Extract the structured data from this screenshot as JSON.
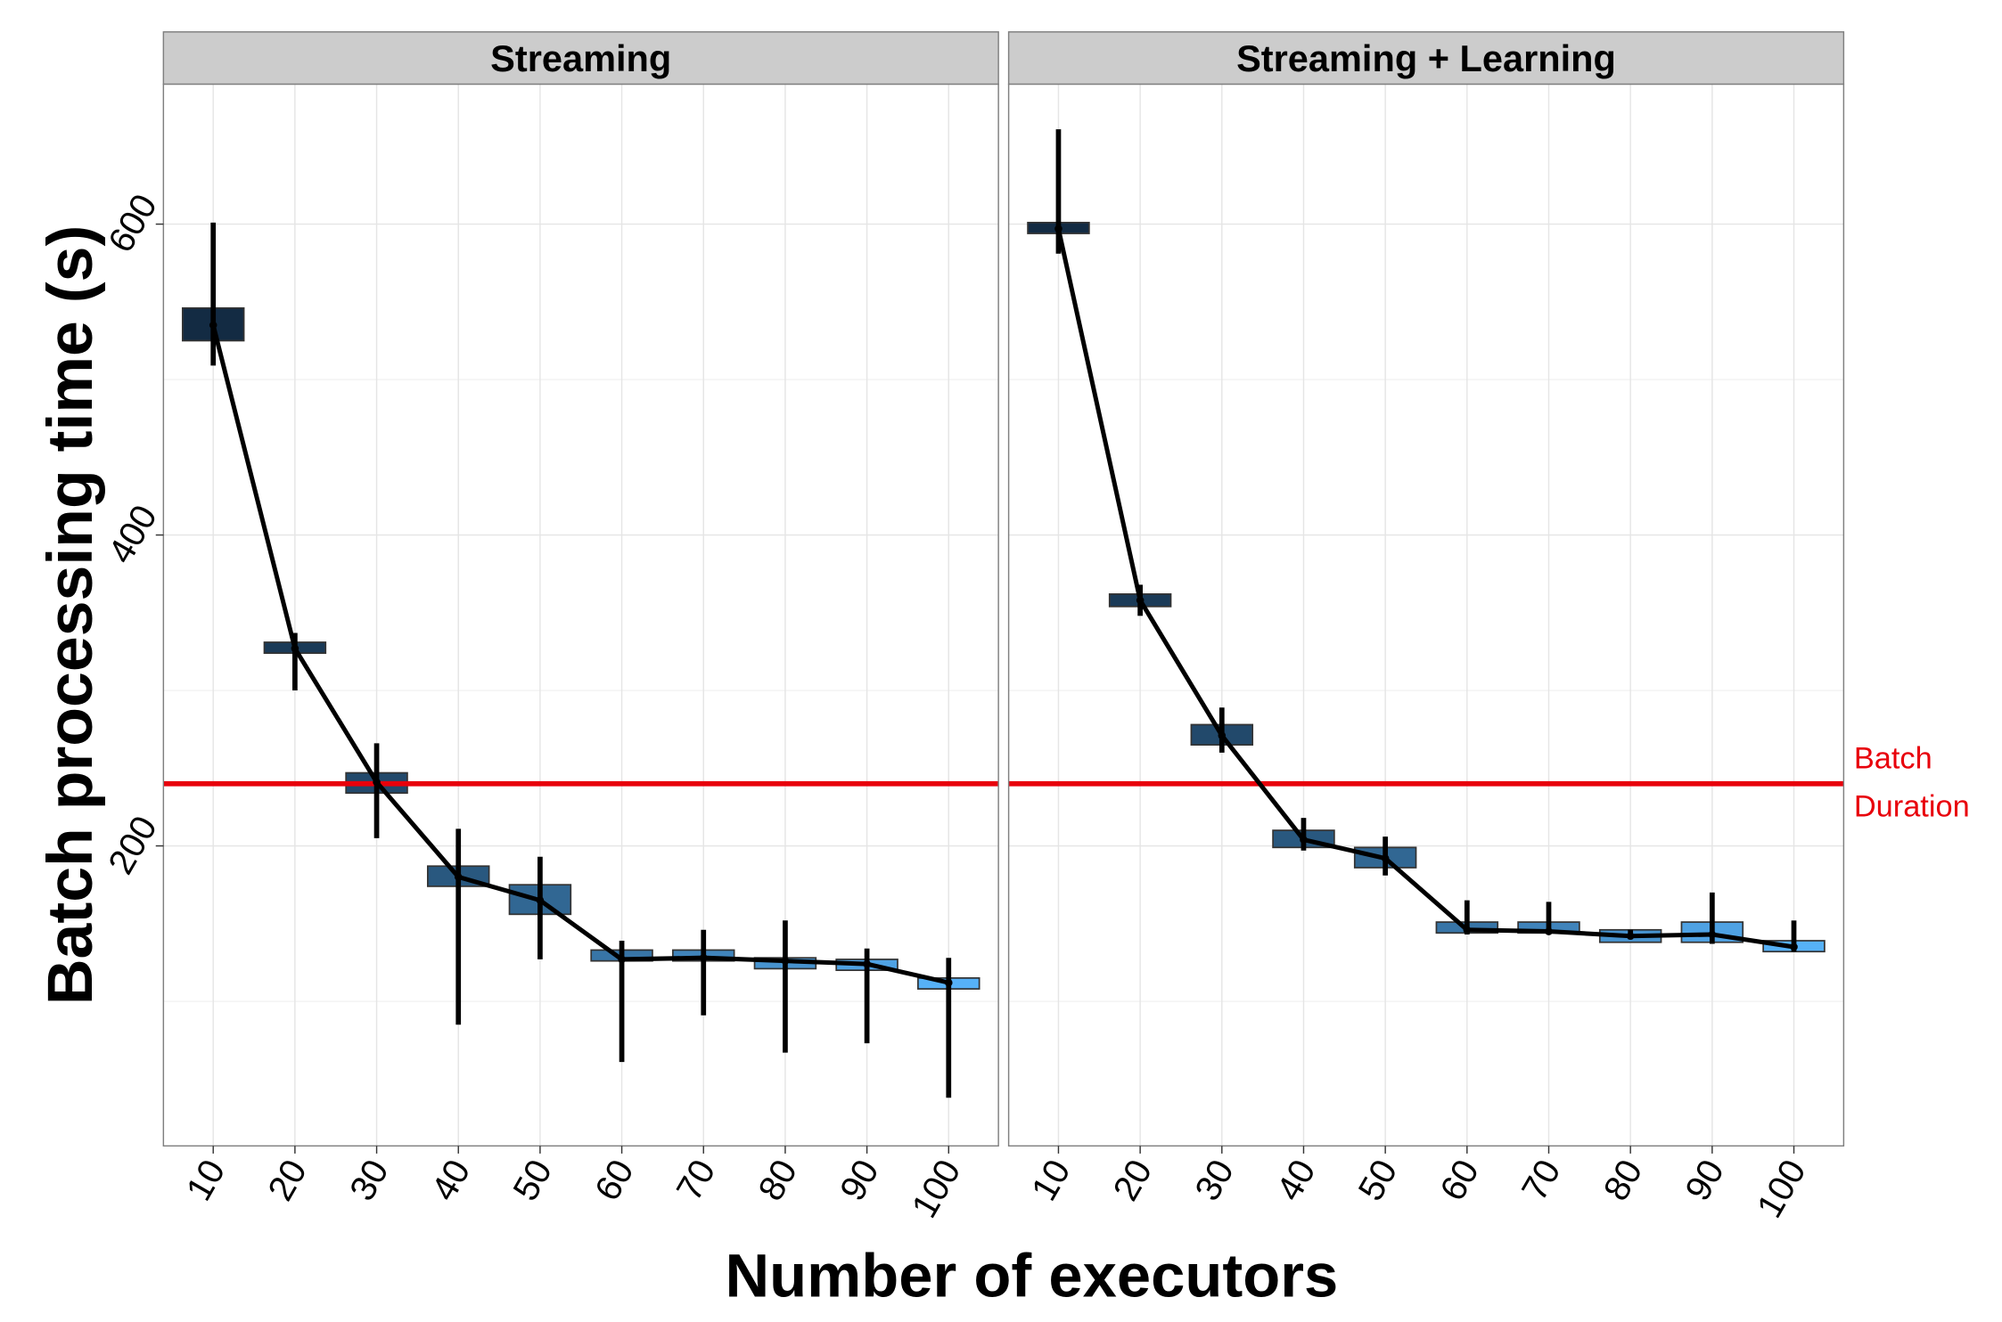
{
  "chart_data": {
    "type": "box",
    "ylabel": "Batch processing time (s)",
    "xlabel": "Number of executors",
    "ylim": [
      7,
      690
    ],
    "yticks": [
      200,
      400,
      600
    ],
    "xticks": [
      10,
      20,
      30,
      40,
      50,
      60,
      70,
      80,
      90,
      100
    ],
    "grid": true,
    "fill_gradient": [
      "#132B43",
      "#56B1F7"
    ],
    "reference_line": {
      "value": 240,
      "label_line1": "Batch",
      "label_line2": "Duration",
      "color": "#E8000B"
    },
    "panels": [
      {
        "title": "Streaming",
        "x": [
          10,
          20,
          30,
          40,
          50,
          60,
          70,
          80,
          90,
          100
        ],
        "mean": [
          535,
          327,
          241,
          180,
          165,
          127,
          128,
          126,
          124,
          112
        ],
        "box_low": [
          525,
          324,
          234,
          174,
          156,
          126,
          126,
          121,
          120,
          108
        ],
        "box_high": [
          546,
          331,
          247,
          187,
          175,
          133,
          133,
          128,
          127,
          115
        ],
        "err_low": [
          509,
          300,
          205,
          85,
          127,
          61,
          91,
          67,
          73,
          38
        ],
        "err_high": [
          601,
          337,
          266,
          211,
          193,
          139,
          146,
          152,
          134,
          128
        ]
      },
      {
        "title": "Streaming + Learning",
        "x": [
          10,
          20,
          30,
          40,
          50,
          60,
          70,
          80,
          90,
          100
        ],
        "mean": [
          597,
          358,
          271,
          204,
          192,
          146,
          145,
          142,
          143,
          135
        ],
        "box_low": [
          594,
          354,
          265,
          199,
          186,
          144,
          144,
          138,
          138,
          132
        ],
        "box_high": [
          601,
          362,
          278,
          210,
          199,
          151,
          151,
          146,
          151,
          139
        ],
        "err_low": [
          581,
          348,
          260,
          197,
          181,
          143,
          144,
          140,
          137,
          132
        ],
        "err_high": [
          661,
          368,
          289,
          218,
          206,
          165,
          164,
          146,
          170,
          152
        ]
      }
    ]
  }
}
